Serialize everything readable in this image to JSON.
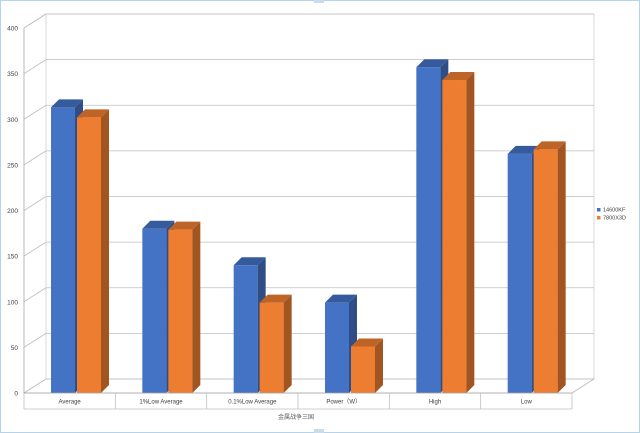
{
  "chart_data": {
    "type": "bar",
    "style": "3d-clustered-column",
    "categories": [
      "Average",
      "1%Low Average",
      "0.1%Low Average",
      "Power（W）",
      "High",
      "Low"
    ],
    "series": [
      {
        "name": "14600KF",
        "color": "#4472c4",
        "values": [
          313,
          180,
          140,
          99,
          357,
          262
        ]
      },
      {
        "name": "7800X3D",
        "color": "#ed7d31",
        "values": [
          302,
          179,
          99,
          51,
          343,
          267
        ]
      }
    ],
    "yticks": [
      "0",
      "50",
      "100",
      "150",
      "200",
      "250",
      "300",
      "350",
      "400"
    ],
    "ylim": [
      0,
      400
    ],
    "xlabel": "金属战争三国",
    "ylabel": "",
    "title": "",
    "grid": true,
    "legend_position": "right"
  }
}
